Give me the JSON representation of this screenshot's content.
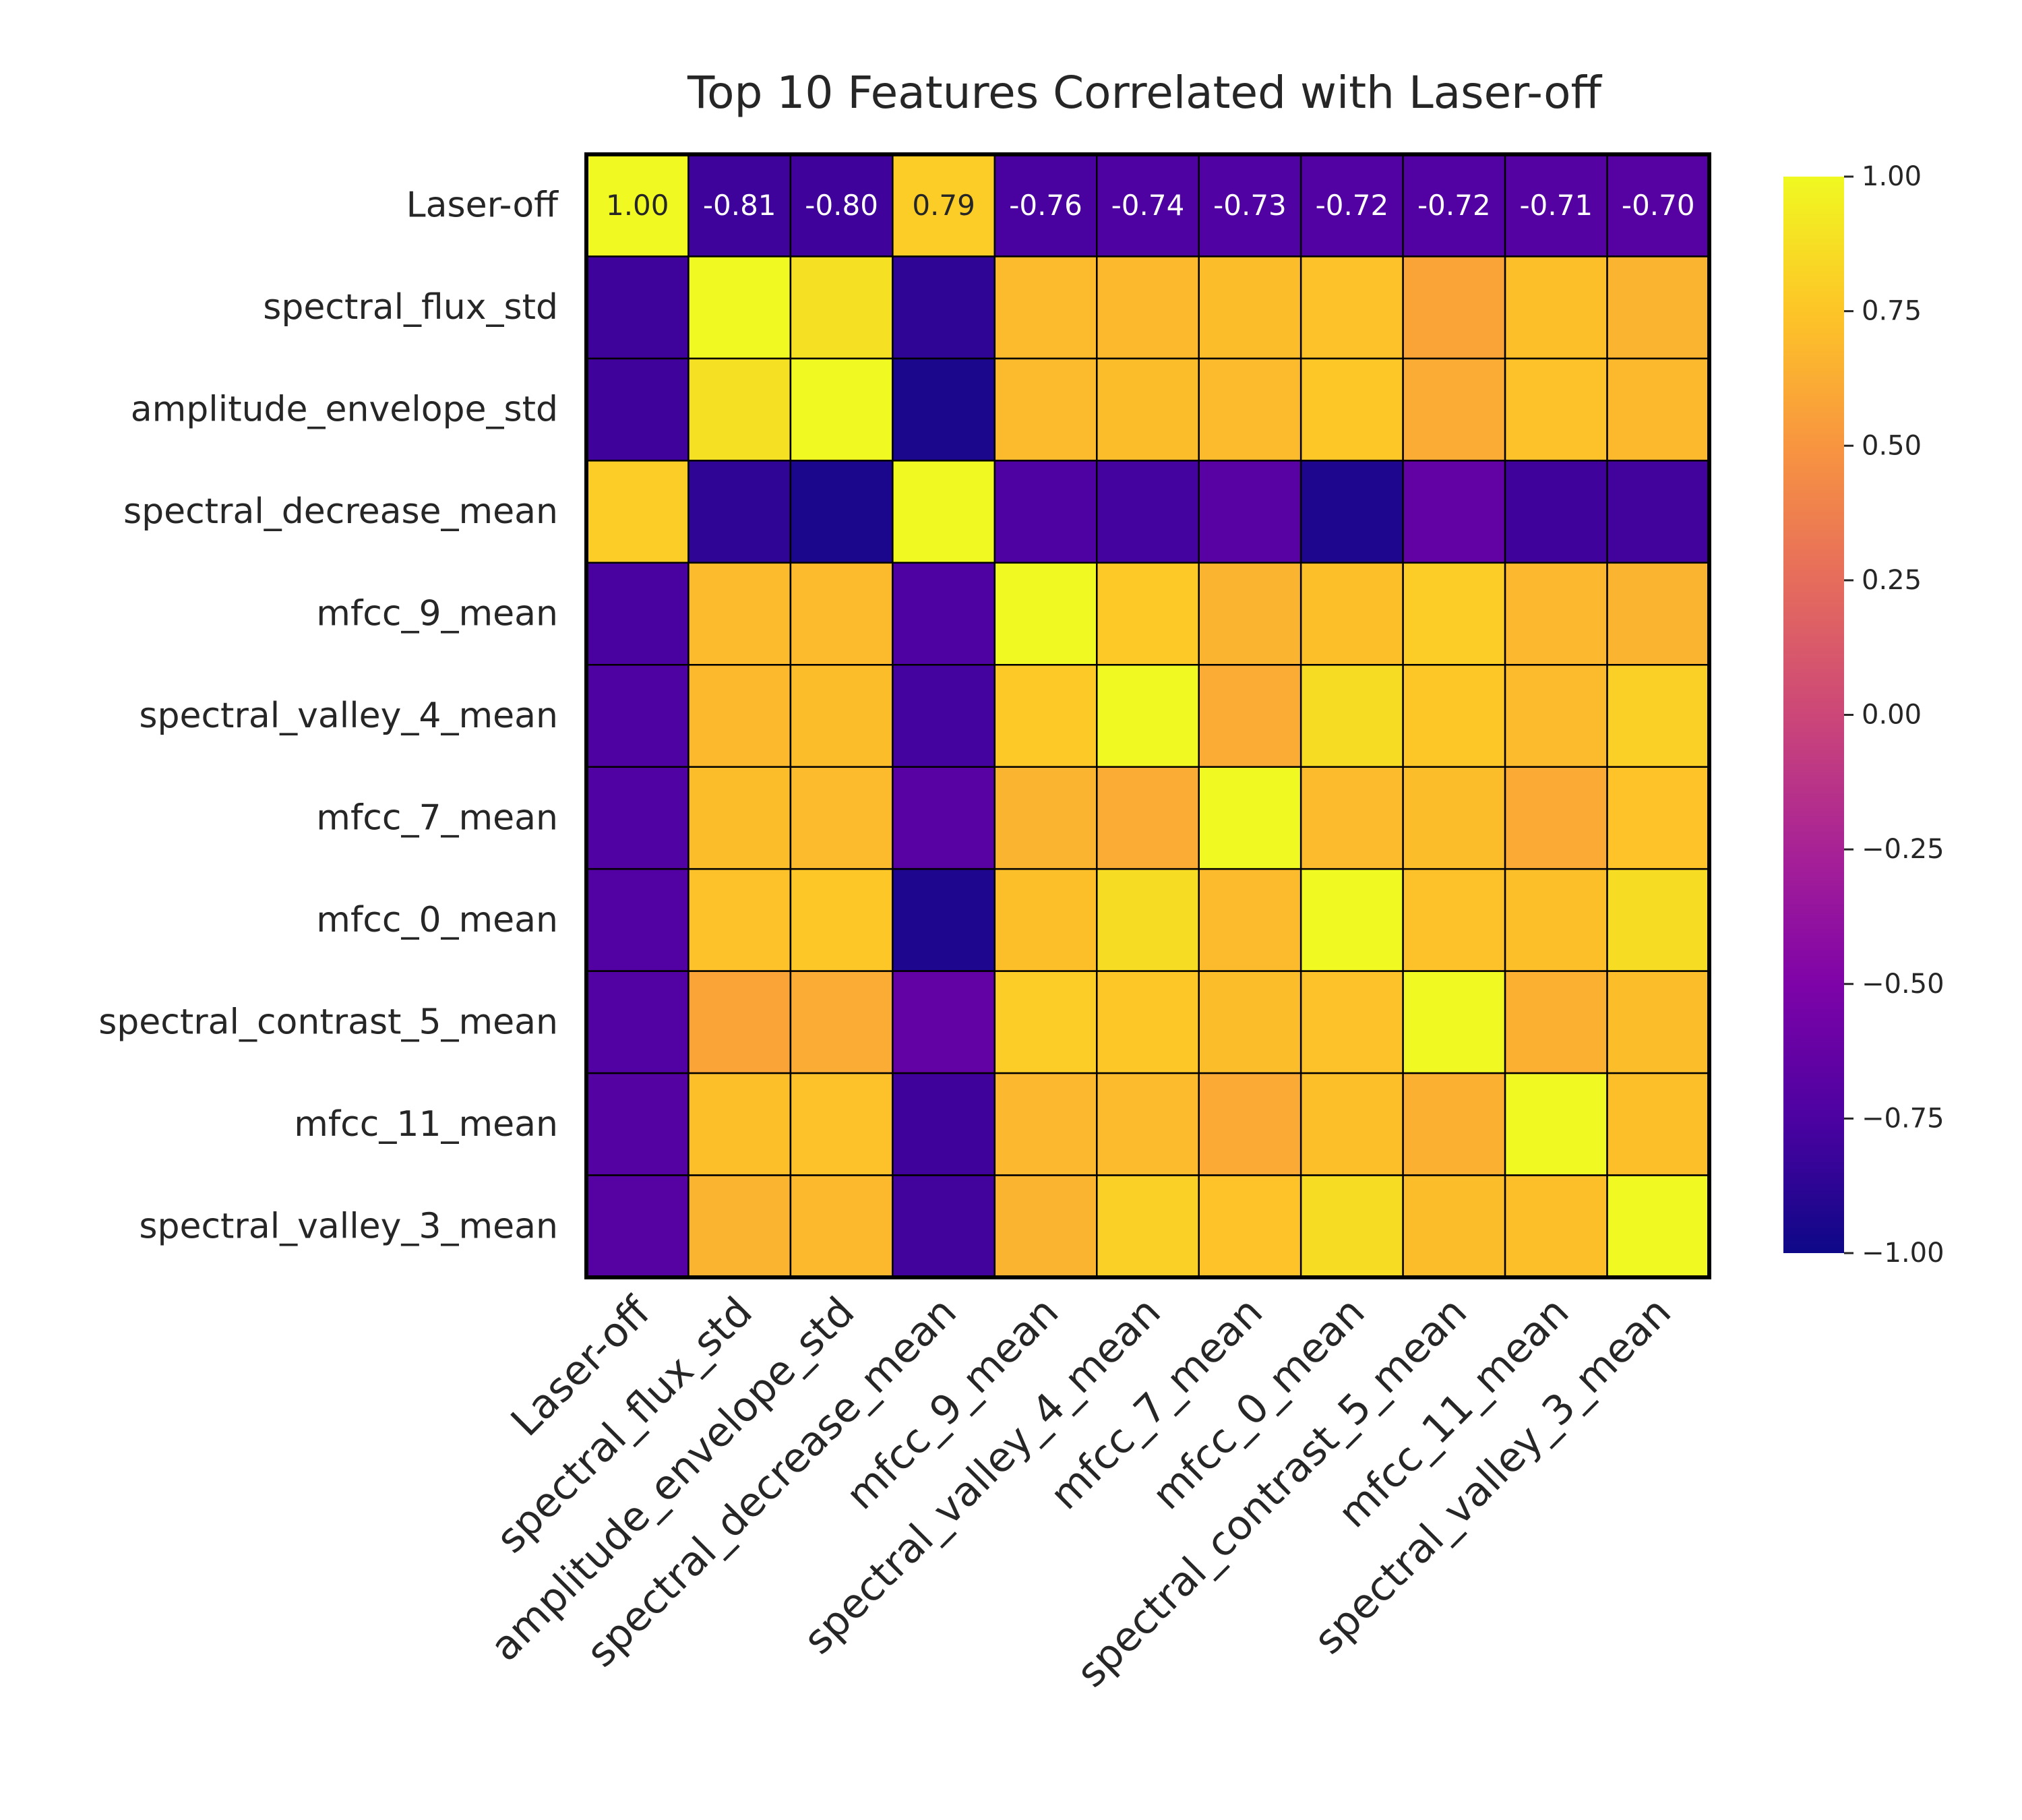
{
  "chart_data": {
    "type": "heatmap",
    "title": "Top 10 Features Correlated with Laser-off",
    "labels": [
      "Laser-off",
      "spectral_flux_std",
      "amplitude_envelope_std",
      "spectral_decrease_mean",
      "mfcc_9_mean",
      "spectral_valley_4_mean",
      "mfcc_7_mean",
      "mfcc_0_mean",
      "spectral_contrast_5_mean",
      "mfcc_11_mean",
      "spectral_valley_3_mean"
    ],
    "matrix": [
      [
        1.0,
        -0.81,
        -0.8,
        0.79,
        -0.76,
        -0.74,
        -0.73,
        -0.72,
        -0.72,
        -0.71,
        -0.7
      ],
      [
        -0.81,
        1.0,
        0.88,
        -0.87,
        0.7,
        0.69,
        0.71,
        0.73,
        0.58,
        0.72,
        0.66
      ],
      [
        -0.8,
        0.88,
        1.0,
        -0.95,
        0.7,
        0.71,
        0.7,
        0.76,
        0.62,
        0.73,
        0.69
      ],
      [
        0.79,
        -0.87,
        -0.95,
        1.0,
        -0.74,
        -0.78,
        -0.69,
        -0.93,
        -0.64,
        -0.8,
        -0.79
      ],
      [
        -0.76,
        0.7,
        0.7,
        -0.74,
        1.0,
        0.77,
        0.66,
        0.72,
        0.79,
        0.68,
        0.66
      ],
      [
        -0.74,
        0.69,
        0.71,
        -0.78,
        0.77,
        1.0,
        0.62,
        0.86,
        0.76,
        0.7,
        0.8
      ],
      [
        -0.73,
        0.71,
        0.7,
        -0.69,
        0.66,
        0.62,
        1.0,
        0.7,
        0.71,
        0.61,
        0.74
      ],
      [
        -0.72,
        0.73,
        0.76,
        -0.93,
        0.72,
        0.86,
        0.7,
        1.0,
        0.73,
        0.72,
        0.86
      ],
      [
        -0.72,
        0.58,
        0.62,
        -0.64,
        0.79,
        0.76,
        0.71,
        0.73,
        1.0,
        0.64,
        0.71
      ],
      [
        -0.71,
        0.72,
        0.73,
        -0.8,
        0.68,
        0.7,
        0.61,
        0.72,
        0.64,
        1.0,
        0.72
      ],
      [
        -0.7,
        0.66,
        0.69,
        -0.79,
        0.66,
        0.8,
        0.74,
        0.86,
        0.71,
        0.72,
        1.0
      ]
    ],
    "annotated_row": 0,
    "annotations": [
      "1.00",
      "-0.81",
      "-0.80",
      "0.79",
      "-0.76",
      "-0.74",
      "-0.73",
      "-0.72",
      "-0.72",
      "-0.71",
      "-0.70"
    ],
    "colormap": "plasma",
    "vmin": -1.0,
    "vmax": 1.0,
    "colorbar_ticks": [
      "1.00",
      "0.75",
      "0.50",
      "0.25",
      "0.00",
      "−0.25",
      "−0.50",
      "−0.75",
      "−1.00"
    ],
    "colorbar_tick_values": [
      1.0,
      0.75,
      0.5,
      0.25,
      0.0,
      -0.25,
      -0.5,
      -0.75,
      -1.0
    ],
    "grid": false,
    "legend": "colorbar-right"
  }
}
